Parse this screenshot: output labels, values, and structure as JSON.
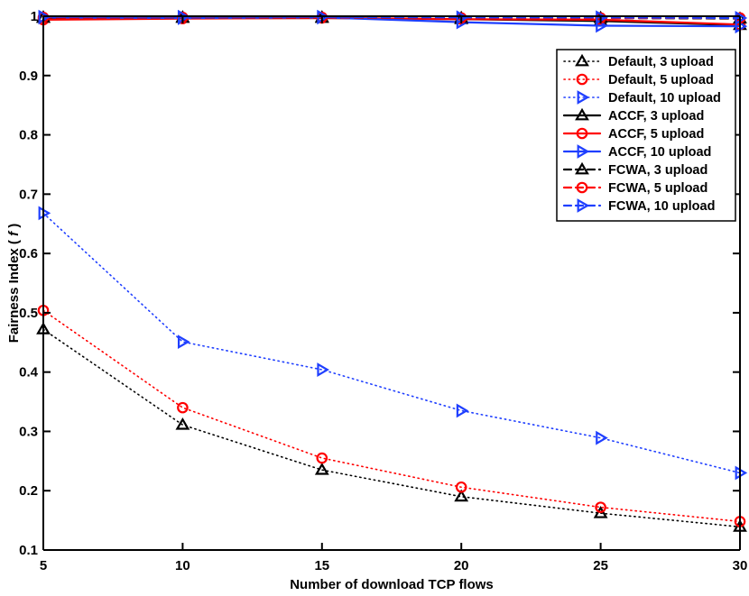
{
  "chart_data": {
    "type": "line",
    "title": "",
    "xlabel": "Number of download TCP flows",
    "ylabel": "Fairness Index (",
    "ylabel_symbol": "f",
    "ylabel_close": ")",
    "xlim": [
      5,
      30
    ],
    "ylim": [
      0.1,
      1
    ],
    "x": [
      5,
      10,
      15,
      20,
      25,
      30
    ],
    "xticks": [
      "5",
      "10",
      "15",
      "20",
      "25",
      "30"
    ],
    "yticks": [
      "0.1",
      "0.2",
      "0.3",
      "0.4",
      "0.5",
      "0.6",
      "0.7",
      "0.8",
      "0.9",
      "1"
    ],
    "legend_position": "top-right",
    "grid": false,
    "series": [
      {
        "name": "Default, 3 upload",
        "color": "#000000",
        "marker": "triangle-up",
        "line": "dotted",
        "values": [
          0.472,
          0.311,
          0.235,
          0.19,
          0.162,
          0.139
        ]
      },
      {
        "name": "Default, 5 upload",
        "color": "#ff0000",
        "marker": "circle",
        "line": "dotted",
        "values": [
          0.504,
          0.34,
          0.255,
          0.206,
          0.172,
          0.148
        ]
      },
      {
        "name": "Default, 10 upload",
        "color": "#1f3fff",
        "marker": "triangle-right",
        "line": "dotted",
        "values": [
          0.668,
          0.451,
          0.404,
          0.335,
          0.289,
          0.23
        ]
      },
      {
        "name": "ACCF, 3 upload",
        "color": "#000000",
        "marker": "triangle-up",
        "line": "solid",
        "values": [
          0.997,
          0.997,
          0.997,
          0.995,
          0.992,
          0.985
        ]
      },
      {
        "name": "ACCF, 5 upload",
        "color": "#ff0000",
        "marker": "circle",
        "line": "solid",
        "values": [
          0.994,
          0.996,
          0.997,
          0.995,
          0.994,
          0.986
        ]
      },
      {
        "name": "ACCF, 10 upload",
        "color": "#1f3fff",
        "marker": "triangle-right",
        "line": "solid",
        "values": [
          0.998,
          0.997,
          0.998,
          0.99,
          0.984,
          0.983
        ]
      },
      {
        "name": "FCWA, 3 upload",
        "color": "#000000",
        "marker": "triangle-up",
        "line": "dashed",
        "values": [
          0.998,
          0.998,
          0.998,
          0.997,
          0.997,
          0.996
        ]
      },
      {
        "name": "FCWA, 5 upload",
        "color": "#ff0000",
        "marker": "circle",
        "line": "dashed",
        "values": [
          0.998,
          0.998,
          0.998,
          0.997,
          0.997,
          0.997
        ]
      },
      {
        "name": "FCWA, 10 upload",
        "color": "#1f3fff",
        "marker": "triangle-right",
        "line": "dashed",
        "values": [
          0.999,
          0.999,
          0.999,
          0.998,
          0.998,
          0.997
        ]
      }
    ]
  }
}
